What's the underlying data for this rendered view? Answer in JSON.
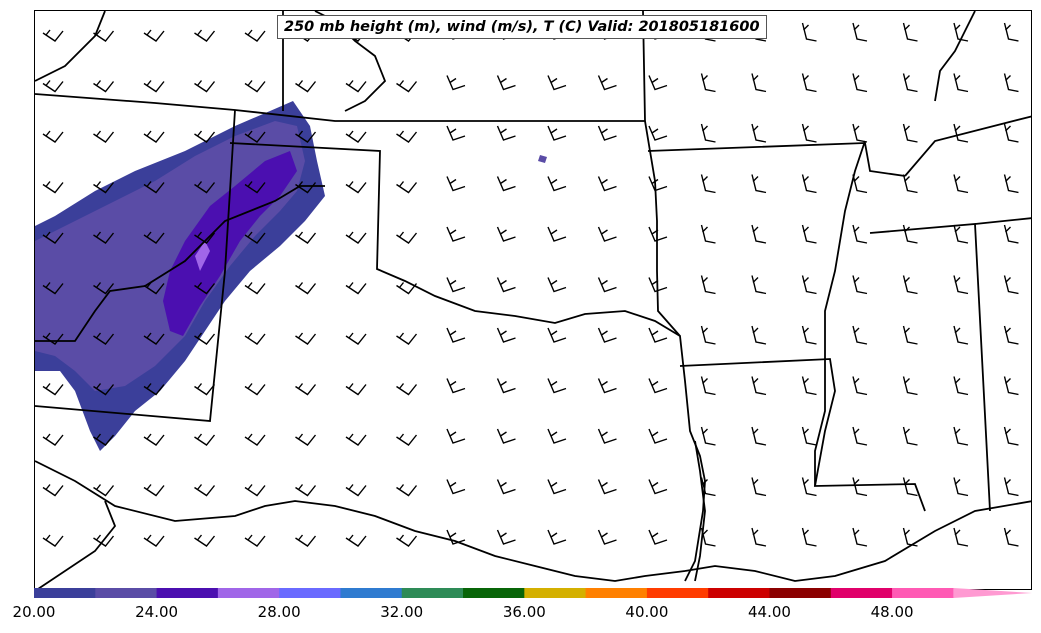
{
  "title": "250 mb height (m), wind (m/s), T (C) Valid: 201805181600",
  "colorbar": {
    "ticks": [
      "20.00",
      "24.00",
      "28.00",
      "32.00",
      "36.00",
      "40.00",
      "44.00",
      "48.00"
    ],
    "tick_values": [
      20,
      24,
      28,
      32,
      36,
      40,
      44,
      48
    ],
    "min": 20,
    "max": 52,
    "bin_size": 2,
    "extend": "max",
    "colors": [
      "#3b3f9a",
      "#5a4ca6",
      "#4b0fb0",
      "#a066e8",
      "#6a6aff",
      "#2f7bd0",
      "#2e8b57",
      "#086508",
      "#d4b000",
      "#ff8000",
      "#ff3c00",
      "#cc0000",
      "#8b0000",
      "#e0006a",
      "#ff5ab4",
      "#ff9ad2"
    ]
  },
  "map": {
    "domain": "south-central United States",
    "shaded_field": "wind speed (m/s) at 250 mb",
    "overlays": [
      "state boundaries",
      "coastline",
      "wind barbs"
    ]
  }
}
